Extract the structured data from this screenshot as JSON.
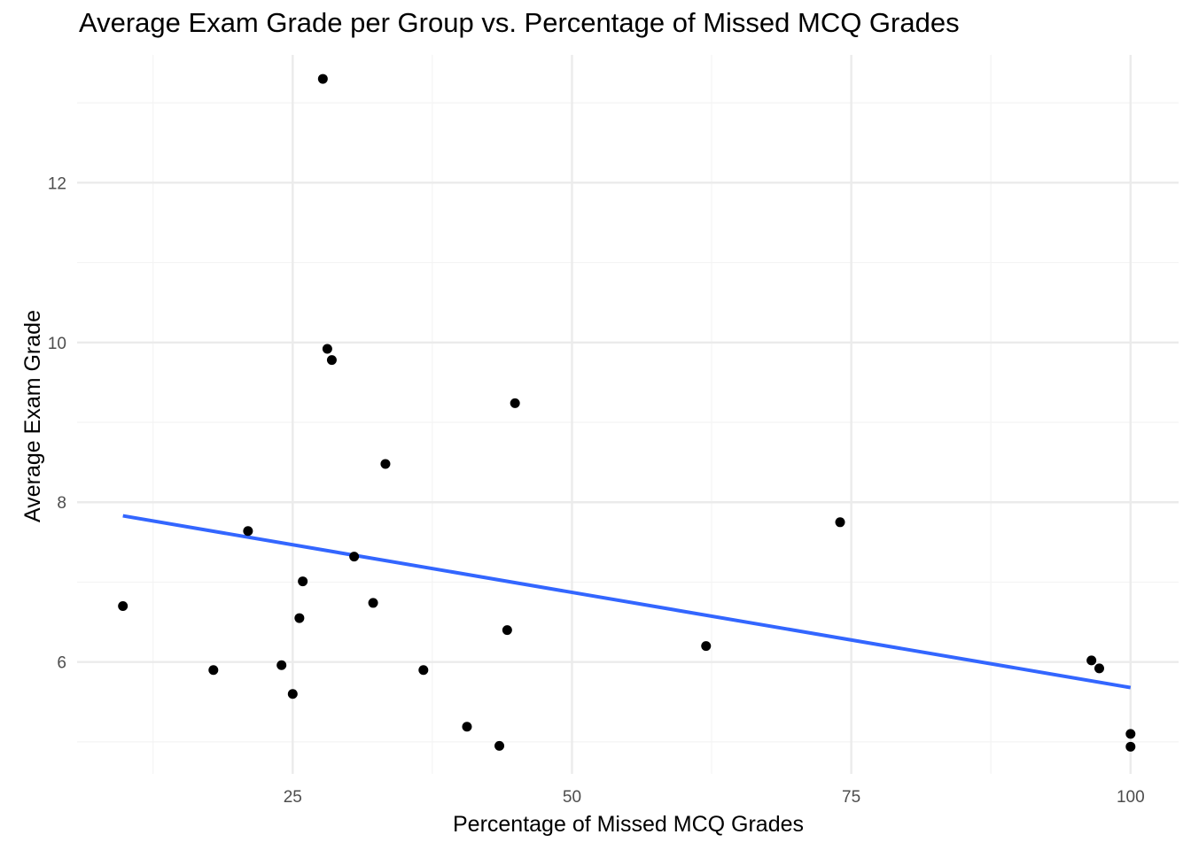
{
  "chart_data": {
    "type": "scatter",
    "title": "Average Exam Grade per Group vs. Percentage of Missed MCQ Grades",
    "xlabel": "Percentage of Missed MCQ Grades",
    "ylabel": "Average Exam Grade",
    "xlim": [
      5.7,
      104.3
    ],
    "ylim": [
      4.6,
      13.6
    ],
    "x_ticks": [
      25,
      50,
      75,
      100
    ],
    "y_ticks": [
      6,
      8,
      10,
      12
    ],
    "x_minor_ticks": [
      12.5,
      37.5,
      62.5,
      87.5
    ],
    "y_minor_ticks": [
      5,
      7,
      9,
      11,
      13
    ],
    "grid": true,
    "series": [
      {
        "points": [
          {
            "x": 27.7,
            "y": 13.3
          },
          {
            "x": 28.1,
            "y": 9.92
          },
          {
            "x": 28.5,
            "y": 9.78
          },
          {
            "x": 44.9,
            "y": 9.24
          },
          {
            "x": 33.3,
            "y": 8.48
          },
          {
            "x": 74.0,
            "y": 7.75
          },
          {
            "x": 21.0,
            "y": 7.64
          },
          {
            "x": 30.5,
            "y": 7.32
          },
          {
            "x": 25.9,
            "y": 7.01
          },
          {
            "x": 32.2,
            "y": 6.74
          },
          {
            "x": 9.8,
            "y": 6.7
          },
          {
            "x": 25.6,
            "y": 6.55
          },
          {
            "x": 44.2,
            "y": 6.4
          },
          {
            "x": 62.0,
            "y": 6.2
          },
          {
            "x": 96.5,
            "y": 6.02
          },
          {
            "x": 24.0,
            "y": 5.96
          },
          {
            "x": 97.2,
            "y": 5.92
          },
          {
            "x": 17.9,
            "y": 5.9
          },
          {
            "x": 36.7,
            "y": 5.9
          },
          {
            "x": 25.0,
            "y": 5.6
          },
          {
            "x": 40.6,
            "y": 5.19
          },
          {
            "x": 100.0,
            "y": 5.1
          },
          {
            "x": 43.5,
            "y": 4.95
          },
          {
            "x": 100.0,
            "y": 4.94
          }
        ]
      }
    ],
    "trend_line": {
      "x": [
        9.8,
        100.0
      ],
      "y": [
        7.83,
        5.68
      ]
    },
    "colors": {
      "points": "#000000",
      "trend": "#3366ff",
      "grid_major": "#ebebeb",
      "grid_minor": "#f4f4f4",
      "background": "#ffffff"
    }
  }
}
